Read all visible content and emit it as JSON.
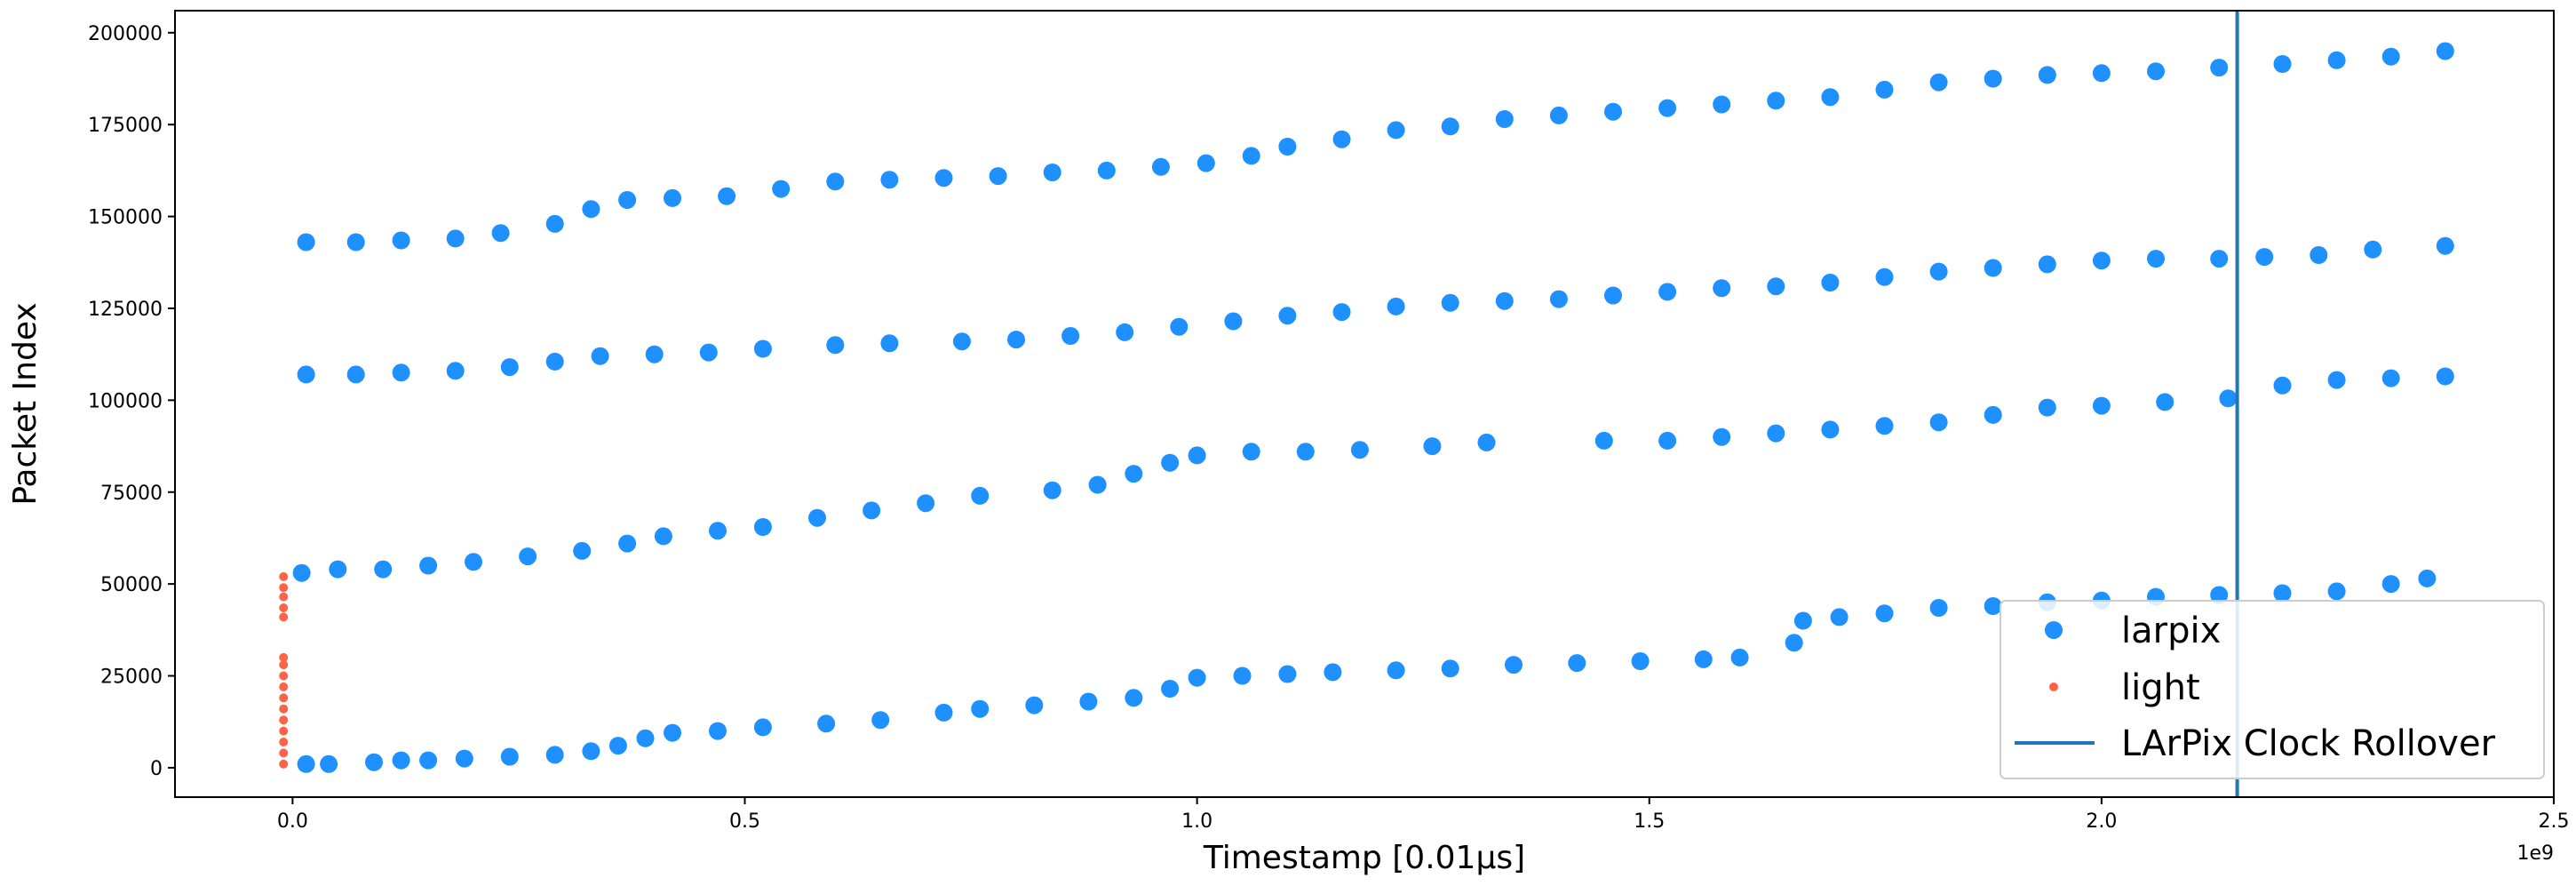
{
  "chart_data": {
    "type": "scatter",
    "xlabel": "Timestamp [0.01μs]",
    "ylabel": "Packet Index",
    "x_offset_label": "1e9",
    "xlim": [
      -0.13,
      2.5
    ],
    "ylim": [
      -8000,
      206000
    ],
    "x_ticks": [
      0.0,
      0.5,
      1.0,
      1.5,
      2.0,
      2.5
    ],
    "x_tick_labels": [
      "0.0",
      "0.5",
      "1.0",
      "1.5",
      "2.0",
      "2.5"
    ],
    "y_ticks": [
      0,
      25000,
      50000,
      75000,
      100000,
      125000,
      150000,
      175000,
      200000
    ],
    "y_tick_labels": [
      "0",
      "25000",
      "50000",
      "75000",
      "100000",
      "125000",
      "150000",
      "175000",
      "200000"
    ],
    "grid": false,
    "legend": {
      "position": "lower-right",
      "entries": [
        "larpix",
        "light",
        "LArPix Clock Rollover"
      ]
    },
    "colors": {
      "larpix": "#1e90ff",
      "light": "#ff6347",
      "rollover": "#1f77b4"
    },
    "vline": {
      "name": "LArPix Clock Rollover",
      "x": 2.15
    },
    "series": [
      {
        "name": "larpix",
        "marker": "circle",
        "points": [
          [
            0.015,
            1000
          ],
          [
            0.04,
            1000
          ],
          [
            0.09,
            1500
          ],
          [
            0.12,
            2000
          ],
          [
            0.15,
            2000
          ],
          [
            0.19,
            2500
          ],
          [
            0.24,
            3000
          ],
          [
            0.29,
            3500
          ],
          [
            0.33,
            4500
          ],
          [
            0.36,
            6000
          ],
          [
            0.39,
            8000
          ],
          [
            0.42,
            9500
          ],
          [
            0.47,
            10000
          ],
          [
            0.52,
            11000
          ],
          [
            0.59,
            12000
          ],
          [
            0.65,
            13000
          ],
          [
            0.72,
            15000
          ],
          [
            0.76,
            16000
          ],
          [
            0.82,
            17000
          ],
          [
            0.88,
            18000
          ],
          [
            0.93,
            19000
          ],
          [
            0.97,
            21500
          ],
          [
            1.0,
            24500
          ],
          [
            1.05,
            25000
          ],
          [
            1.1,
            25500
          ],
          [
            1.15,
            26000
          ],
          [
            1.22,
            26500
          ],
          [
            1.28,
            27000
          ],
          [
            1.35,
            28000
          ],
          [
            1.42,
            28500
          ],
          [
            1.49,
            29000
          ],
          [
            1.56,
            29500
          ],
          [
            1.6,
            30000
          ],
          [
            1.66,
            34000
          ],
          [
            1.67,
            40000
          ],
          [
            1.71,
            41000
          ],
          [
            1.76,
            42000
          ],
          [
            1.82,
            43500
          ],
          [
            1.88,
            44000
          ],
          [
            1.94,
            45000
          ],
          [
            2.0,
            45500
          ],
          [
            2.06,
            46500
          ],
          [
            2.13,
            47000
          ],
          [
            2.2,
            47500
          ],
          [
            2.26,
            48000
          ],
          [
            2.32,
            50000
          ],
          [
            2.36,
            51500
          ],
          [
            0.01,
            53000
          ],
          [
            0.05,
            54000
          ],
          [
            0.1,
            54000
          ],
          [
            0.15,
            55000
          ],
          [
            0.2,
            56000
          ],
          [
            0.26,
            57500
          ],
          [
            0.32,
            59000
          ],
          [
            0.37,
            61000
          ],
          [
            0.41,
            63000
          ],
          [
            0.47,
            64500
          ],
          [
            0.52,
            65500
          ],
          [
            0.58,
            68000
          ],
          [
            0.64,
            70000
          ],
          [
            0.7,
            72000
          ],
          [
            0.76,
            74000
          ],
          [
            0.84,
            75500
          ],
          [
            0.89,
            77000
          ],
          [
            0.93,
            80000
          ],
          [
            0.97,
            83000
          ],
          [
            1.0,
            85000
          ],
          [
            1.06,
            86000
          ],
          [
            1.12,
            86000
          ],
          [
            1.18,
            86500
          ],
          [
            1.26,
            87500
          ],
          [
            1.32,
            88500
          ],
          [
            1.45,
            89000
          ],
          [
            1.52,
            89000
          ],
          [
            1.58,
            90000
          ],
          [
            1.64,
            91000
          ],
          [
            1.7,
            92000
          ],
          [
            1.76,
            93000
          ],
          [
            1.82,
            94000
          ],
          [
            1.88,
            96000
          ],
          [
            1.94,
            98000
          ],
          [
            2.0,
            98500
          ],
          [
            2.07,
            99500
          ],
          [
            2.14,
            100500
          ],
          [
            2.2,
            104000
          ],
          [
            2.26,
            105500
          ],
          [
            2.32,
            106000
          ],
          [
            2.38,
            106500
          ],
          [
            0.015,
            107000
          ],
          [
            0.07,
            107000
          ],
          [
            0.12,
            107500
          ],
          [
            0.18,
            108000
          ],
          [
            0.24,
            109000
          ],
          [
            0.29,
            110500
          ],
          [
            0.34,
            112000
          ],
          [
            0.4,
            112500
          ],
          [
            0.46,
            113000
          ],
          [
            0.52,
            114000
          ],
          [
            0.6,
            115000
          ],
          [
            0.66,
            115500
          ],
          [
            0.74,
            116000
          ],
          [
            0.8,
            116500
          ],
          [
            0.86,
            117500
          ],
          [
            0.92,
            118500
          ],
          [
            0.98,
            120000
          ],
          [
            1.04,
            121500
          ],
          [
            1.1,
            123000
          ],
          [
            1.16,
            124000
          ],
          [
            1.22,
            125500
          ],
          [
            1.28,
            126500
          ],
          [
            1.34,
            127000
          ],
          [
            1.4,
            127500
          ],
          [
            1.46,
            128500
          ],
          [
            1.52,
            129500
          ],
          [
            1.58,
            130500
          ],
          [
            1.64,
            131000
          ],
          [
            1.7,
            132000
          ],
          [
            1.76,
            133500
          ],
          [
            1.82,
            135000
          ],
          [
            1.88,
            136000
          ],
          [
            1.94,
            137000
          ],
          [
            2.0,
            138000
          ],
          [
            2.06,
            138500
          ],
          [
            2.13,
            138500
          ],
          [
            2.18,
            139000
          ],
          [
            2.24,
            139500
          ],
          [
            2.3,
            141000
          ],
          [
            2.38,
            142000
          ],
          [
            0.015,
            143000
          ],
          [
            0.07,
            143000
          ],
          [
            0.12,
            143500
          ],
          [
            0.18,
            144000
          ],
          [
            0.23,
            145500
          ],
          [
            0.29,
            148000
          ],
          [
            0.33,
            152000
          ],
          [
            0.37,
            154500
          ],
          [
            0.42,
            155000
          ],
          [
            0.48,
            155500
          ],
          [
            0.54,
            157500
          ],
          [
            0.6,
            159500
          ],
          [
            0.66,
            160000
          ],
          [
            0.72,
            160500
          ],
          [
            0.78,
            161000
          ],
          [
            0.84,
            162000
          ],
          [
            0.9,
            162500
          ],
          [
            0.96,
            163500
          ],
          [
            1.01,
            164500
          ],
          [
            1.06,
            166500
          ],
          [
            1.1,
            169000
          ],
          [
            1.16,
            171000
          ],
          [
            1.22,
            173500
          ],
          [
            1.28,
            174500
          ],
          [
            1.34,
            176500
          ],
          [
            1.4,
            177500
          ],
          [
            1.46,
            178500
          ],
          [
            1.52,
            179500
          ],
          [
            1.58,
            180500
          ],
          [
            1.64,
            181500
          ],
          [
            1.7,
            182500
          ],
          [
            1.76,
            184500
          ],
          [
            1.82,
            186500
          ],
          [
            1.88,
            187500
          ],
          [
            1.94,
            188500
          ],
          [
            2.0,
            189000
          ],
          [
            2.06,
            189500
          ],
          [
            2.13,
            190500
          ],
          [
            2.2,
            191500
          ],
          [
            2.26,
            192500
          ],
          [
            2.32,
            193500
          ],
          [
            2.38,
            195000
          ]
        ]
      },
      {
        "name": "light",
        "marker": "small-circle",
        "points": [
          [
            -0.01,
            1000
          ],
          [
            -0.01,
            4000
          ],
          [
            -0.01,
            7000
          ],
          [
            -0.01,
            10000
          ],
          [
            -0.01,
            13000
          ],
          [
            -0.01,
            16000
          ],
          [
            -0.01,
            19000
          ],
          [
            -0.01,
            22000
          ],
          [
            -0.01,
            25000
          ],
          [
            -0.01,
            28000
          ],
          [
            -0.01,
            30000
          ],
          [
            -0.01,
            41000
          ],
          [
            -0.01,
            43500
          ],
          [
            -0.01,
            46500
          ],
          [
            -0.01,
            49000
          ],
          [
            -0.01,
            52000
          ]
        ]
      }
    ]
  }
}
